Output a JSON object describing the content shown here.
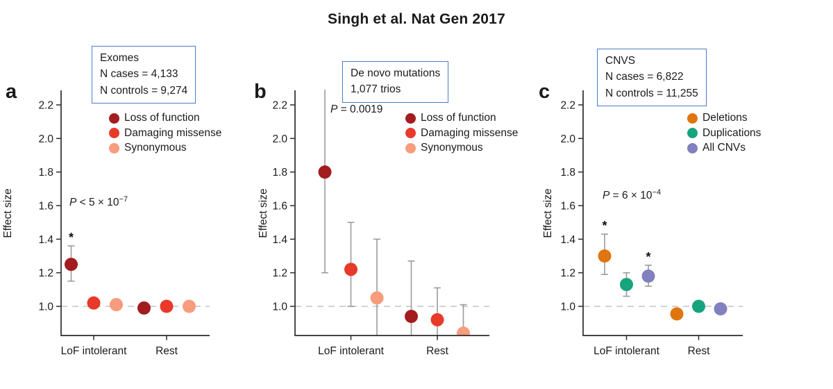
{
  "title": "Singh et al. Nat Gen 2017",
  "colors": {
    "box_border": "#4a7cc7",
    "error_bar": "#9b9b9b",
    "baseline_dash": "#cccccc",
    "axis": "#2b2b2b",
    "text": "#1a1a1a"
  },
  "panels": [
    {
      "letter": "a",
      "info_box": [
        "Exomes",
        "N cases = 4,133",
        "N controls = 9,274"
      ],
      "p": {
        "prefix": "P",
        "body": " < 5 × 10",
        "exponent": "−7"
      }
    },
    {
      "letter": "b",
      "info_box": [
        "De novo mutations",
        "1,077 trios"
      ],
      "p": {
        "prefix": "P",
        "body": " = 0.0019",
        "exponent": ""
      }
    },
    {
      "letter": "c",
      "info_box": [
        "CNVS",
        "N cases = 6,822",
        "N controls = 11,255"
      ],
      "p": {
        "prefix": "P",
        "body": " = 6 × 10",
        "exponent": "−4"
      }
    }
  ],
  "chart_data": [
    {
      "panel": "a",
      "type": "scatter",
      "subtitle_box": [
        "Exomes",
        "N cases = 4,133",
        "N controls = 9,274"
      ],
      "p_value": "P < 5 × 10⁻⁷",
      "ylabel": "Effect size",
      "categories": [
        "LoF intolerant",
        "Rest"
      ],
      "yticks": [
        "1.0",
        "1.2",
        "1.4",
        "1.6",
        "1.8",
        "2.0",
        "2.2"
      ],
      "ylim": [
        0.83,
        2.29
      ],
      "baseline": 1.0,
      "grid": false,
      "legend_position": "upper-right",
      "series": [
        {
          "name": "Loss of function",
          "color": "#a21c20",
          "points": [
            {
              "y": 1.25,
              "ci": [
                1.15,
                1.36
              ],
              "sig": true
            },
            {
              "y": 0.99,
              "ci": null,
              "sig": false
            }
          ]
        },
        {
          "name": "Damaging missense",
          "color": "#e8392b",
          "points": [
            {
              "y": 1.02,
              "ci": null,
              "sig": false
            },
            {
              "y": 1.0,
              "ci": null,
              "sig": false
            }
          ]
        },
        {
          "name": "Synonymous",
          "color": "#f79c7d",
          "points": [
            {
              "y": 1.01,
              "ci": null,
              "sig": false
            },
            {
              "y": 1.0,
              "ci": null,
              "sig": false
            }
          ]
        }
      ]
    },
    {
      "panel": "b",
      "type": "scatter",
      "subtitle_box": [
        "De novo mutations",
        "1,077 trios"
      ],
      "p_value": "P = 0.0019",
      "ylabel": "Effect size",
      "categories": [
        "LoF intolerant",
        "Rest"
      ],
      "yticks": [
        "1.0",
        "1.2",
        "1.4",
        "1.6",
        "1.8",
        "2.0",
        "2.2"
      ],
      "ylim": [
        0.83,
        2.29
      ],
      "baseline": 1.0,
      "grid": false,
      "legend_position": "upper-right",
      "series": [
        {
          "name": "Loss of function",
          "color": "#a21c20",
          "points": [
            {
              "y": 1.8,
              "ci": [
                1.2,
                null
              ],
              "sig": false
            },
            {
              "y": 0.94,
              "ci": [
                null,
                1.27
              ],
              "sig": false
            }
          ]
        },
        {
          "name": "Damaging missense",
          "color": "#e8392b",
          "points": [
            {
              "y": 1.22,
              "ci": [
                1.0,
                1.5
              ],
              "sig": false
            },
            {
              "y": 0.92,
              "ci": [
                null,
                1.11
              ],
              "sig": false
            }
          ]
        },
        {
          "name": "Synonymous",
          "color": "#f79c7d",
          "points": [
            {
              "y": 1.05,
              "ci": [
                null,
                1.4
              ],
              "sig": false
            },
            {
              "y": 0.84,
              "ci": [
                null,
                1.01
              ],
              "sig": false
            }
          ]
        }
      ]
    },
    {
      "panel": "c",
      "type": "scatter",
      "subtitle_box": [
        "CNVS",
        "N cases = 6,822",
        "N controls = 11,255"
      ],
      "p_value": "P = 6 × 10⁻⁴",
      "ylabel": "Effect size",
      "categories": [
        "LoF intolerant",
        "Rest"
      ],
      "yticks": [
        "1.0",
        "1.2",
        "1.4",
        "1.6",
        "1.8",
        "2.0",
        "2.2"
      ],
      "ylim": [
        0.83,
        2.29
      ],
      "baseline": 1.0,
      "grid": false,
      "legend_position": "upper-right",
      "series": [
        {
          "name": "Deletions",
          "color": "#e0750e",
          "points": [
            {
              "y": 1.3,
              "ci": [
                1.19,
                1.43
              ],
              "sig": true
            },
            {
              "y": 0.955,
              "ci": null,
              "sig": false
            }
          ]
        },
        {
          "name": "Duplications",
          "color": "#16a47e",
          "points": [
            {
              "y": 1.13,
              "ci": [
                1.06,
                1.2
              ],
              "sig": false
            },
            {
              "y": 1.0,
              "ci": null,
              "sig": false
            }
          ]
        },
        {
          "name": "All CNVs",
          "color": "#8280be",
          "points": [
            {
              "y": 1.18,
              "ci": [
                1.12,
                1.245
              ],
              "sig": true
            },
            {
              "y": 0.985,
              "ci": null,
              "sig": false
            }
          ]
        }
      ]
    }
  ]
}
